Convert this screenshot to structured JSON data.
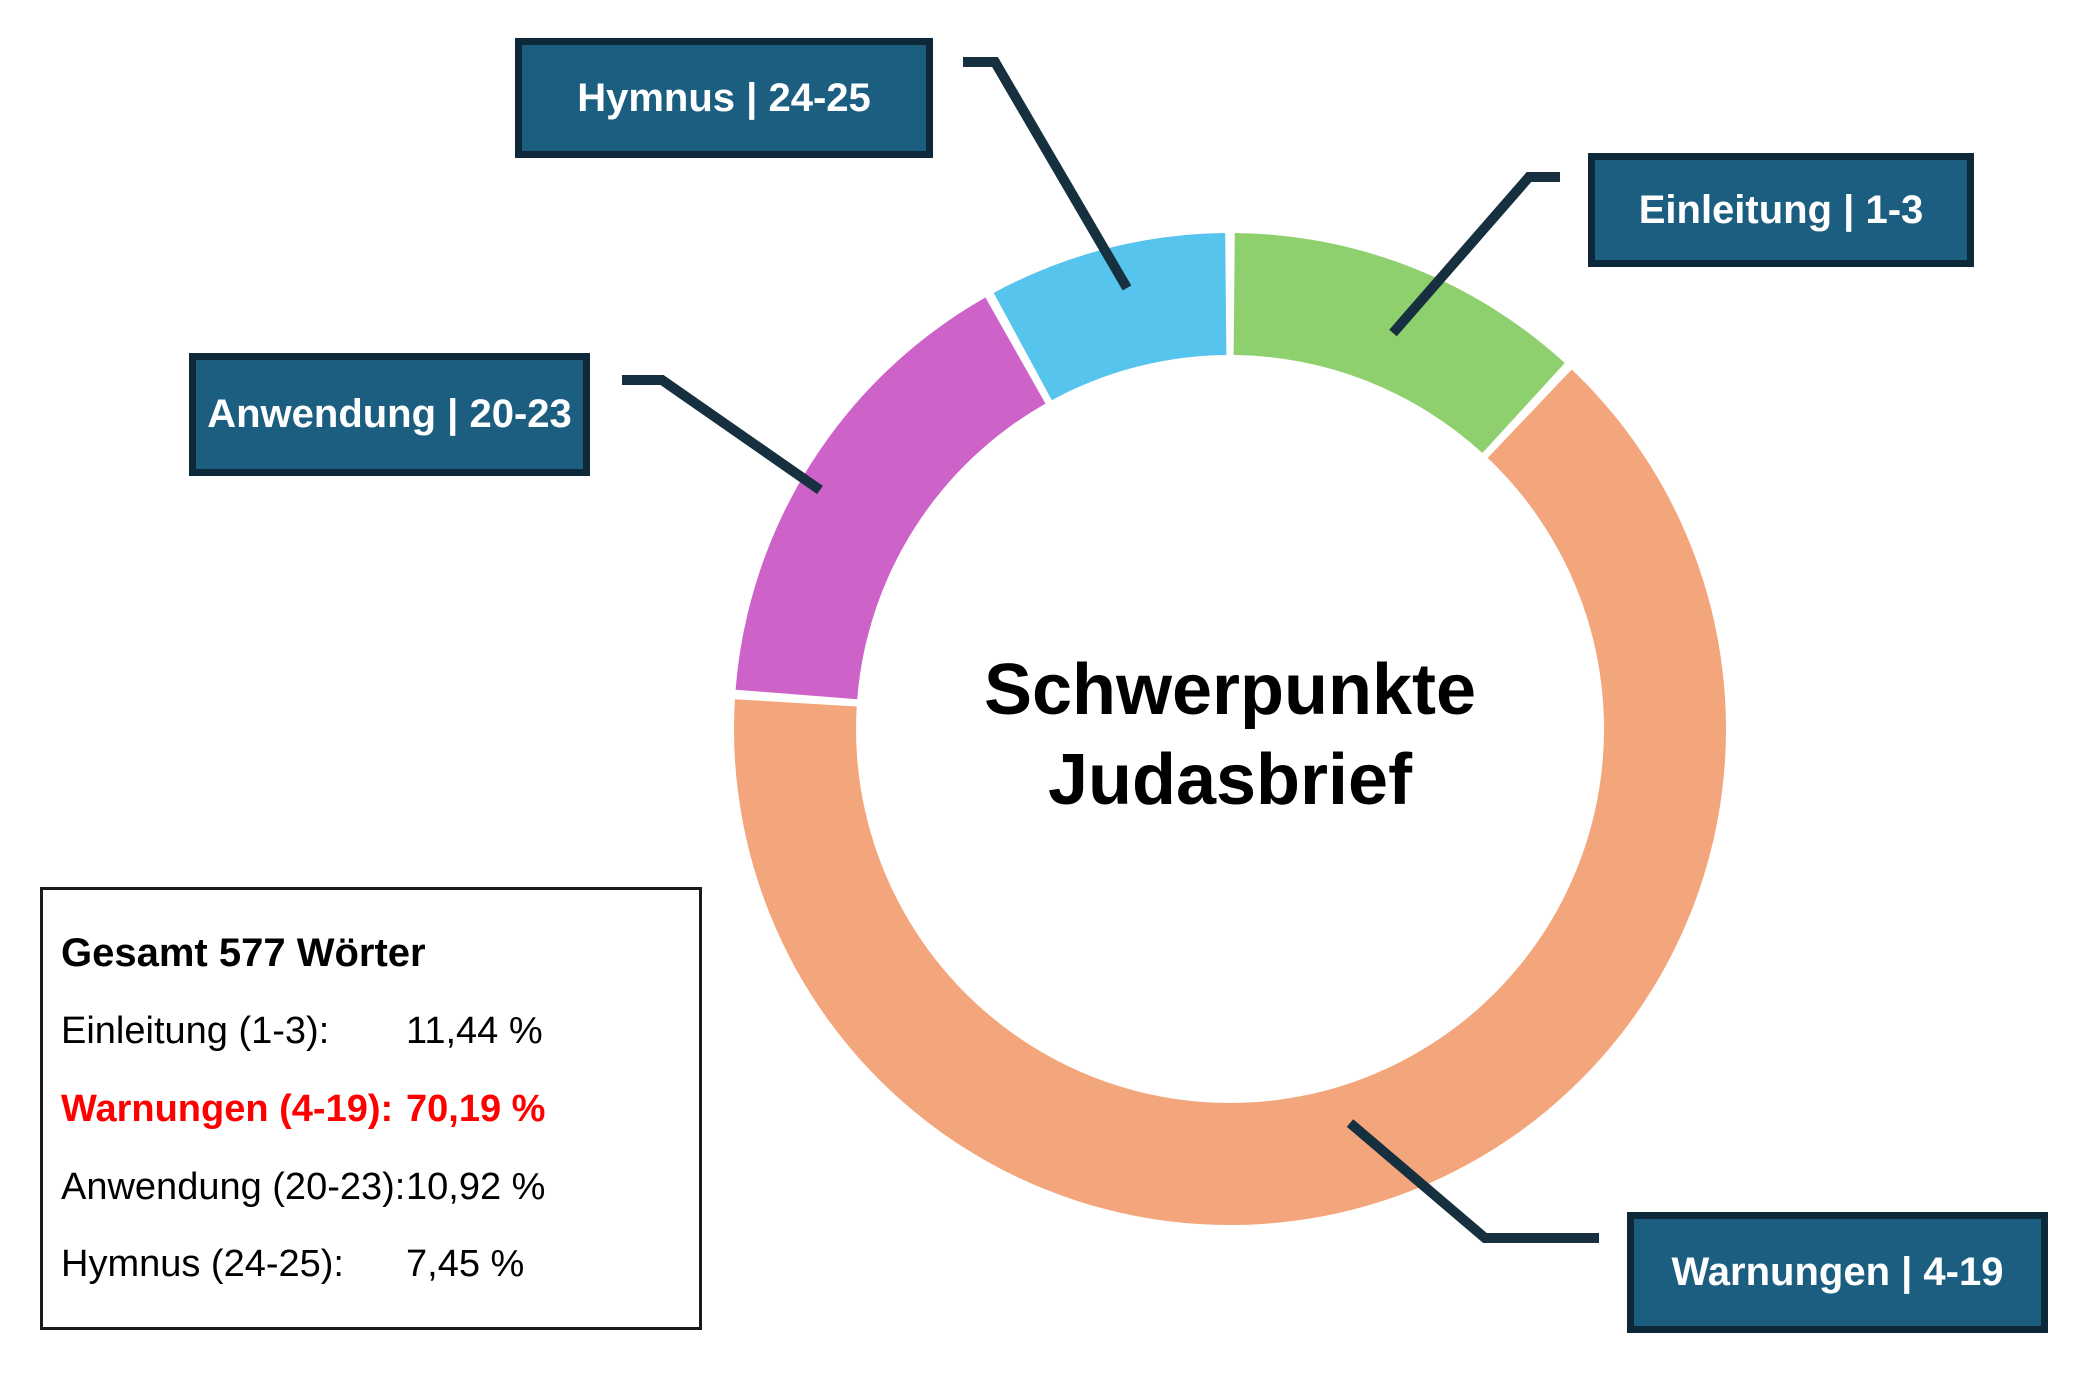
{
  "chart": {
    "center_title_line1": "Schwerpunkte",
    "center_title_line2": "Judasbrief"
  },
  "chart_data": {
    "type": "donut",
    "title": "Schwerpunkte Judasbrief",
    "total_label": "Gesamt 577 Wörter",
    "total_words": 577,
    "legend_position": "bottom-left",
    "callout_box_color": "#1B5E80",
    "callout_border_color": "#0D2838",
    "leader_line_color": "#16303F",
    "segments": [
      {
        "label": "Einleitung",
        "verses": "1-3",
        "percent": 11.44,
        "percent_text": "11,44 %",
        "color": "#8ED06E",
        "emphasized": false
      },
      {
        "label": "Warnungen",
        "verses": "4-19",
        "percent": 70.19,
        "percent_text": "70,19 %",
        "color": "#F3A67B",
        "emphasized": true
      },
      {
        "label": "Anwendung",
        "verses": "20-23",
        "percent": 10.92,
        "percent_text": "10,92 %",
        "color": "#CD63C8",
        "emphasized": false
      },
      {
        "label": "Hymnus",
        "verses": "24-25",
        "percent": 7.45,
        "percent_text": "7,45 %",
        "color": "#57C4ED",
        "emphasized": false
      }
    ],
    "display_angles_deg": [
      [
        0,
        43
      ],
      [
        43,
        274
      ],
      [
        274,
        331
      ],
      [
        331,
        360
      ]
    ]
  },
  "callouts": {
    "hymnus": {
      "label": "Hymnus | 24-25"
    },
    "einleitung": {
      "label": "Einleitung | 1-3"
    },
    "anwendung": {
      "label": "Anwendung | 20-23"
    },
    "warnungen": {
      "label": "Warnungen | 4-19"
    }
  },
  "legend": {
    "title": "Gesamt 577 Wörter",
    "rows": [
      {
        "label": "Einleitung (1-3):",
        "value": "11,44 %"
      },
      {
        "label": "Warnungen (4-19):",
        "value": "70,19 %"
      },
      {
        "label": "Anwendung (20-23):",
        "value": "10,92 %"
      },
      {
        "label": "Hymnus (24-25):",
        "value": "7,45 %"
      }
    ]
  }
}
